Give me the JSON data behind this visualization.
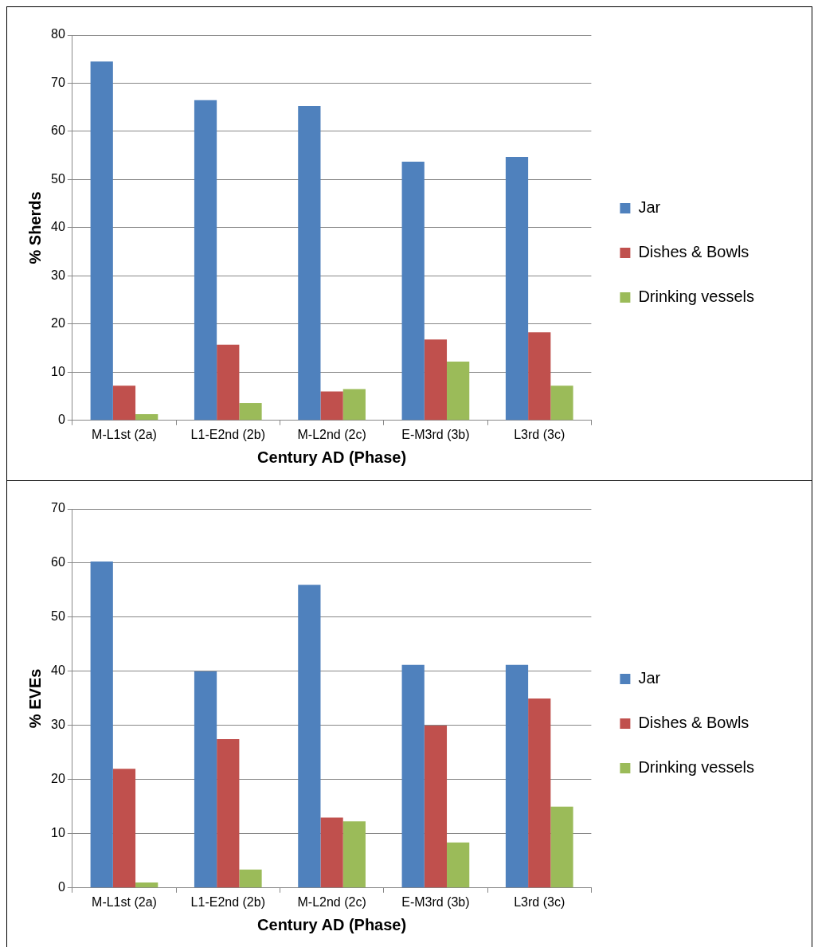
{
  "chart_data": [
    {
      "type": "bar",
      "xlabel": "Century AD (Phase)",
      "ylabel": "% Sherds",
      "categories": [
        "M-L1st (2a)",
        "L1-E2nd (2b)",
        "M-L2nd (2c)",
        "E-M3rd (3b)",
        "L3rd (3c)"
      ],
      "series": [
        {
          "name": "Jar",
          "color": "#4f81bd",
          "values": [
            74.5,
            66.5,
            65.3,
            53.7,
            54.7
          ]
        },
        {
          "name": "Dishes & Bowls",
          "color": "#c0504d",
          "values": [
            7.2,
            15.7,
            6,
            16.8,
            18.3
          ]
        },
        {
          "name": "Drinking vessels",
          "color": "#9bbb59",
          "values": [
            1.3,
            3.6,
            6.5,
            12.2,
            7.2
          ]
        }
      ],
      "ylim": [
        0,
        80
      ],
      "yticks": [
        0,
        10,
        20,
        30,
        40,
        50,
        60,
        70,
        80
      ],
      "grid": "y",
      "legend": "right"
    },
    {
      "type": "bar",
      "xlabel": "Century AD (Phase)",
      "ylabel": "% EVEs",
      "categories": [
        "M-L1st (2a)",
        "L1-E2nd (2b)",
        "M-L2nd (2c)",
        "E-M3rd (3b)",
        "L3rd (3c)"
      ],
      "series": [
        {
          "name": "Jar",
          "color": "#4f81bd",
          "values": [
            60.3,
            40,
            56,
            41.2,
            41.2
          ]
        },
        {
          "name": "Dishes & Bowls",
          "color": "#c0504d",
          "values": [
            22,
            27.5,
            13,
            30,
            35
          ]
        },
        {
          "name": "Drinking vessels",
          "color": "#9bbb59",
          "values": [
            1,
            3.4,
            12.3,
            8.4,
            15
          ]
        }
      ],
      "ylim": [
        0,
        70
      ],
      "yticks": [
        0,
        10,
        20,
        30,
        40,
        50,
        60,
        70
      ],
      "grid": "y",
      "legend": "right"
    }
  ]
}
